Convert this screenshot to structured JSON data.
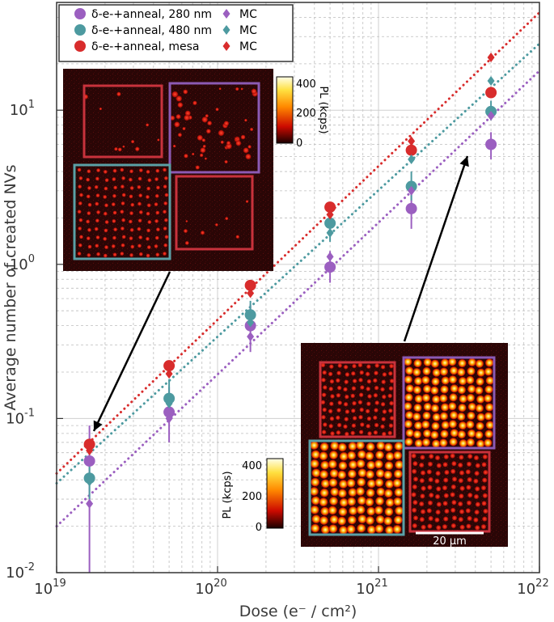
{
  "chart_data": {
    "type": "scatter",
    "x_scale": "log",
    "y_scale": "log",
    "xlim": [
      1e+19,
      1e+22
    ],
    "ylim": [
      0.01,
      50
    ],
    "xlabel": "Dose (e⁻ / cm²)",
    "ylabel": "Average number of created NVs",
    "x_ticks": [
      {
        "value": 1e+19,
        "base": "10",
        "exp": "19"
      },
      {
        "value": 1e+20,
        "base": "10",
        "exp": "20"
      },
      {
        "value": 1e+21,
        "base": "10",
        "exp": "21"
      },
      {
        "value": 1e+22,
        "base": "10",
        "exp": "22"
      }
    ],
    "y_ticks": [
      {
        "value": 0.01,
        "base": "10",
        "exp": "-2"
      },
      {
        "value": 0.1,
        "base": "10",
        "exp": "-1"
      },
      {
        "value": 1,
        "base": "10",
        "exp": "0"
      },
      {
        "value": 10,
        "base": "10",
        "exp": "1"
      }
    ],
    "grid": true,
    "series": [
      {
        "name": "δ-e-+anneal, 280 nm",
        "marker": "circle",
        "color": "#9b5fc0",
        "x": [
          1.6e+19,
          5e+19,
          1.6e+20,
          5e+20,
          1.6e+21,
          5e+21
        ],
        "y": [
          0.053,
          0.11,
          0.4,
          0.96,
          2.3,
          6.0
        ],
        "err_low": [
          0.01,
          0.07,
          0.27,
          0.76,
          1.7,
          4.8
        ],
        "err_high": [
          0.09,
          0.16,
          0.55,
          1.22,
          3.0,
          7.2
        ]
      },
      {
        "name": "δ-e-+anneal, 480 nm",
        "marker": "circle",
        "color": "#4d9aa0",
        "x": [
          1.6e+19,
          5e+19,
          1.6e+20,
          5e+20,
          1.6e+21,
          5e+21
        ],
        "y": [
          0.041,
          0.135,
          0.47,
          1.85,
          3.2,
          9.8
        ],
        "err_low": [
          0.03,
          0.1,
          0.38,
          1.4,
          2.6,
          8.6
        ],
        "err_high": [
          0.055,
          0.18,
          0.58,
          2.2,
          4.0,
          11.5
        ]
      },
      {
        "name": "δ-e-+anneal, mesa",
        "marker": "circle",
        "color": "#d82c2c",
        "x": [
          1.6e+19,
          5e+19,
          1.6e+20,
          5e+20,
          1.6e+21,
          5e+21
        ],
        "y": [
          0.068,
          0.22,
          0.73,
          2.35,
          5.5,
          13.0
        ]
      },
      {
        "name": "MC",
        "marker": "diamond",
        "color": "#9b5fc0",
        "x": [
          1.6e+19,
          5e+19,
          1.6e+20,
          5e+20,
          1.6e+21,
          5e+21
        ],
        "y": [
          0.028,
          0.1,
          0.34,
          1.12,
          3.0,
          9.2
        ]
      },
      {
        "name": "MC",
        "marker": "diamond",
        "color": "#4d9aa0",
        "x": [
          1.6e+19,
          5e+19,
          1.6e+20,
          5e+20,
          1.6e+21,
          5e+21
        ],
        "y": [
          0.039,
          0.125,
          0.42,
          1.6,
          4.8,
          15.5
        ]
      },
      {
        "name": "MC",
        "marker": "diamond",
        "color": "#d82c2c",
        "x": [
          1.6e+19,
          5e+19,
          1.6e+20,
          5e+20,
          1.6e+21,
          5e+21
        ],
        "y": [
          0.062,
          0.195,
          0.65,
          2.1,
          6.3,
          22.0
        ]
      }
    ],
    "fit_lines": [
      {
        "color": "#9b5fc0",
        "x": [
          1e+19,
          1e+22
        ],
        "y": [
          0.02,
          18
        ]
      },
      {
        "color": "#4d9aa0",
        "x": [
          1e+19,
          1e+22
        ],
        "y": [
          0.038,
          27
        ]
      },
      {
        "color": "#d82c2c",
        "x": [
          1e+19,
          1e+22
        ],
        "y": [
          0.044,
          43
        ]
      }
    ],
    "legend": {
      "position": "top-left",
      "columns": 2
    },
    "insets": [
      {
        "name": "low-dose PL map",
        "colorbar": {
          "label": "PL (kcps)",
          "ticks": [
            "400",
            "200",
            "0"
          ]
        }
      },
      {
        "name": "high-dose PL map",
        "colorbar": {
          "label": "PL (kcps)",
          "ticks": [
            "400",
            "200",
            "0"
          ]
        },
        "scale_bar": "20 µm"
      }
    ]
  }
}
